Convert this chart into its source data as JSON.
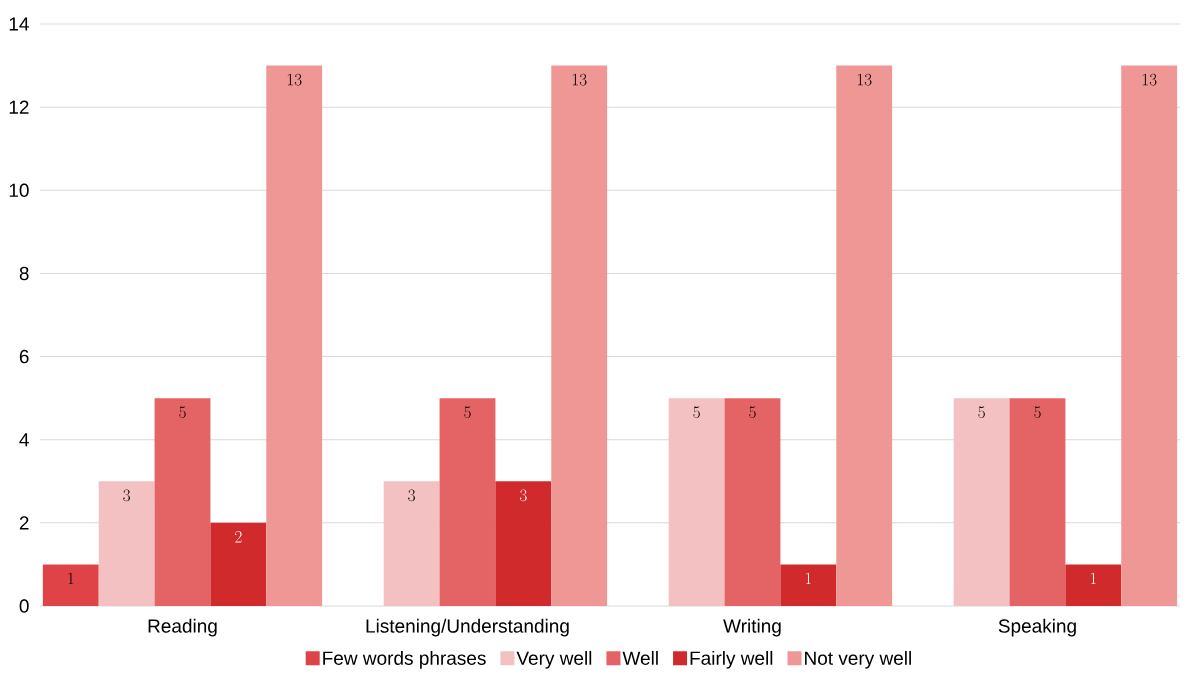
{
  "chart_data": {
    "type": "bar",
    "categories": [
      "Reading",
      "Listening/Understanding",
      "Writing",
      "Speaking"
    ],
    "series": [
      {
        "name": "Few words phrases",
        "color": "#e04347",
        "values": [
          1,
          null,
          null,
          null
        ]
      },
      {
        "name": "Very well",
        "color": "#f3c1c1",
        "values": [
          3,
          3,
          5,
          5
        ]
      },
      {
        "name": "Well",
        "color": "#e46364",
        "values": [
          5,
          5,
          5,
          5
        ]
      },
      {
        "name": "Fairly well",
        "color": "#d02a2d",
        "values": [
          2,
          3,
          1,
          1
        ]
      },
      {
        "name": "Not very well",
        "color": "#ee9795",
        "values": [
          13,
          13,
          13,
          13
        ]
      }
    ],
    "ylim": [
      0,
      14
    ],
    "yticks": [
      0,
      2,
      4,
      6,
      8,
      10,
      12,
      14
    ],
    "grid": "y",
    "legend": "bottom",
    "data_labels": true
  }
}
